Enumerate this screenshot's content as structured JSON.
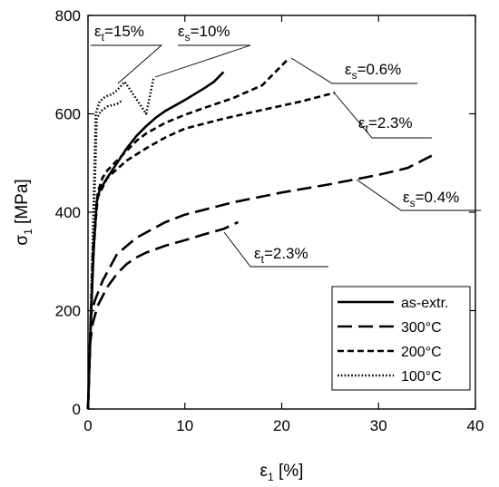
{
  "chart_data": {
    "type": "line",
    "xlabel": {
      "sym": "ε",
      "sub": "1",
      "rest": " [%]"
    },
    "ylabel": {
      "sym": "σ",
      "sub": "1",
      "rest": " [MPa]"
    },
    "xlim": [
      0,
      40
    ],
    "ylim": [
      0,
      800
    ],
    "x_ticks": [
      0,
      10,
      20,
      30,
      40
    ],
    "y_ticks": [
      0,
      200,
      400,
      600,
      800
    ],
    "grid": false,
    "legend_position": "bottom-right",
    "series": [
      {
        "name": "as-extr.",
        "style": "solid",
        "points": [
          [
            0,
            0
          ],
          [
            0.3,
            180
          ],
          [
            0.6,
            330
          ],
          [
            0.9,
            420
          ],
          [
            1.2,
            445
          ],
          [
            2,
            470
          ],
          [
            3,
            500
          ],
          [
            4,
            530
          ],
          [
            5,
            555
          ],
          [
            6,
            575
          ],
          [
            7,
            592
          ],
          [
            8,
            606
          ],
          [
            9,
            617
          ],
          [
            10,
            628
          ],
          [
            11,
            640
          ],
          [
            12,
            652
          ],
          [
            13,
            665
          ],
          [
            14,
            685
          ]
        ]
      },
      {
        "name": "300°C",
        "style": "dashed-long",
        "points": [
          [
            0,
            0
          ],
          [
            0.2,
            130
          ],
          [
            0.5,
            175
          ],
          [
            1,
            210
          ],
          [
            2,
            248
          ],
          [
            3,
            275
          ],
          [
            4,
            295
          ],
          [
            5,
            308
          ],
          [
            6,
            318
          ],
          [
            8,
            332
          ],
          [
            10,
            343
          ],
          [
            12,
            355
          ],
          [
            14,
            366
          ],
          [
            15.5,
            380
          ]
        ]
      },
      {
        "name": "200°C",
        "style": "dashed-short",
        "points": [
          [
            0,
            0
          ],
          [
            0.5,
            300
          ],
          [
            1,
            440
          ],
          [
            1.5,
            470
          ],
          [
            2,
            485
          ],
          [
            3,
            505
          ],
          [
            4,
            525
          ],
          [
            5,
            545
          ],
          [
            6,
            560
          ],
          [
            8,
            582
          ],
          [
            10,
            598
          ],
          [
            12,
            612
          ],
          [
            15,
            632
          ],
          [
            18,
            658
          ],
          [
            20.7,
            712
          ]
        ]
      },
      {
        "name": "100°C",
        "style": "dotted",
        "points": [
          [
            0,
            0
          ],
          [
            0.5,
            350
          ],
          [
            0.8,
            600
          ],
          [
            1.2,
            625
          ],
          [
            1.8,
            635
          ],
          [
            2.5,
            640
          ],
          [
            3,
            648
          ],
          [
            3.8,
            665
          ],
          [
            6,
            600
          ],
          [
            6.8,
            675
          ]
        ]
      },
      {
        "name": "",
        "style": "dashed-long",
        "points": [
          [
            0,
            0
          ],
          [
            0.3,
            190
          ],
          [
            0.7,
            220
          ],
          [
            1.5,
            260
          ],
          [
            3,
            315
          ],
          [
            5,
            348
          ],
          [
            8,
            380
          ],
          [
            10,
            395
          ],
          [
            15,
            420
          ],
          [
            20,
            440
          ],
          [
            25,
            457
          ],
          [
            30,
            476
          ],
          [
            33,
            490
          ],
          [
            35.5,
            515
          ]
        ]
      },
      {
        "name": "",
        "style": "dashed-short",
        "points": [
          [
            0,
            0
          ],
          [
            0.5,
            320
          ],
          [
            1,
            430
          ],
          [
            2,
            470
          ],
          [
            4,
            505
          ],
          [
            6,
            530
          ],
          [
            8,
            552
          ],
          [
            10,
            570
          ],
          [
            14,
            590
          ],
          [
            18,
            608
          ],
          [
            22,
            625
          ],
          [
            25.5,
            643
          ]
        ]
      },
      {
        "name": "",
        "style": "dotted",
        "points": [
          [
            0,
            0
          ],
          [
            0.6,
            380
          ],
          [
            0.9,
            590
          ],
          [
            1.3,
            605
          ],
          [
            2,
            615
          ],
          [
            3,
            620
          ],
          [
            3.6,
            628
          ]
        ]
      }
    ],
    "annotations": [
      {
        "sym": "ε",
        "sub": "t",
        "rest": "=15%"
      },
      {
        "sym": "ε",
        "sub": "s",
        "rest": "=10%"
      },
      {
        "sym": "ε",
        "sub": "s",
        "rest": "=0.6%"
      },
      {
        "sym": "ε",
        "sub": "t",
        "rest": "=2.3%"
      },
      {
        "sym": "ε",
        "sub": "s",
        "rest": "=0.4%"
      },
      {
        "sym": "ε",
        "sub": "t",
        "rest": "=2.3%"
      }
    ]
  }
}
